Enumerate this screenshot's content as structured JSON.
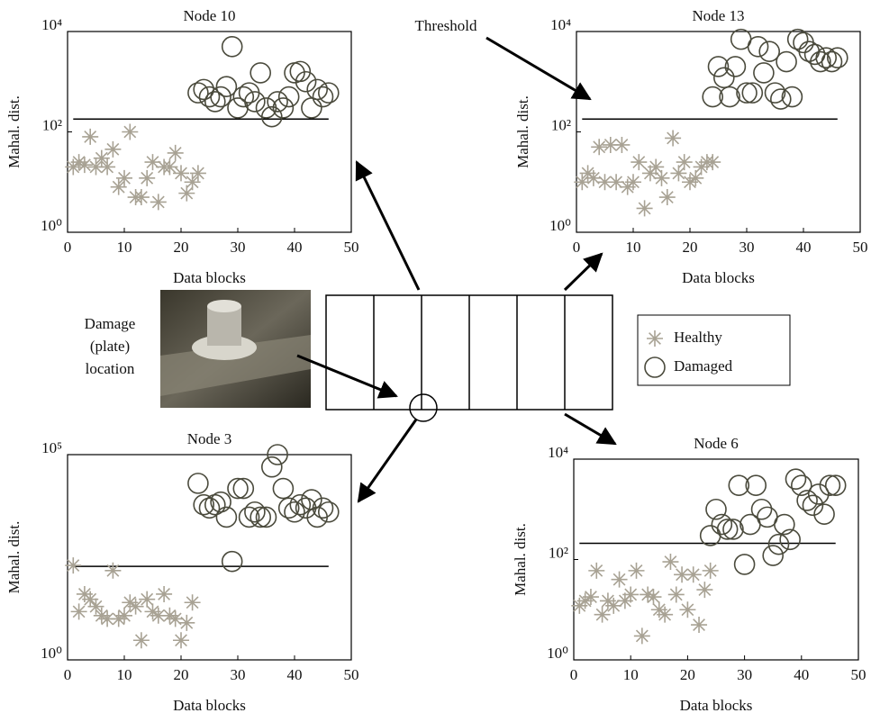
{
  "annotations": {
    "threshold": "Threshold",
    "damage": [
      "Damage",
      "(plate)",
      "location"
    ]
  },
  "chart_data": [
    {
      "type": "scatter",
      "title": "Node 10",
      "xlabel": "Data blocks",
      "ylabel": "Mahal. dist.",
      "log_y": true,
      "threshold": 180,
      "xlim": [
        0,
        50
      ],
      "xticks": [
        0,
        10,
        20,
        30,
        40,
        50
      ],
      "ylim": [
        1,
        10000
      ],
      "yticks": [
        {
          "value": 1,
          "label": "10⁰"
        },
        {
          "value": 100,
          "label": "10²"
        },
        {
          "value": 10000,
          "label": "10⁴"
        }
      ],
      "series": [
        {
          "name": "Healthy",
          "color": "#a8a294",
          "marker": "star",
          "x": [
            1,
            2,
            3,
            4,
            5,
            6,
            7,
            8,
            9,
            10,
            11,
            12,
            13,
            14,
            15,
            16,
            17,
            18,
            19,
            20,
            21,
            22,
            23
          ],
          "values": [
            20,
            25,
            22,
            80,
            20,
            30,
            20,
            45,
            8,
            12,
            100,
            5,
            5,
            12,
            25,
            4,
            20,
            20,
            38,
            15,
            6,
            10,
            15
          ]
        },
        {
          "name": "Damaged",
          "color": "#4a4a3c",
          "marker": "circle",
          "x": [
            23,
            24,
            25,
            26,
            27,
            28,
            29,
            30,
            31,
            32,
            33,
            34,
            35,
            36,
            37,
            38,
            39,
            40,
            41,
            42,
            43,
            44,
            45,
            46
          ],
          "values": [
            600,
            700,
            500,
            400,
            500,
            800,
            5000,
            300,
            500,
            600,
            400,
            1500,
            300,
            200,
            400,
            300,
            500,
            1500,
            1600,
            1000,
            300,
            700,
            500,
            600
          ]
        }
      ]
    },
    {
      "type": "scatter",
      "title": "Node 13",
      "xlabel": "Data blocks",
      "ylabel": "Mahal. dist.",
      "log_y": true,
      "threshold": 180,
      "xlim": [
        0,
        50
      ],
      "xticks": [
        0,
        10,
        20,
        30,
        40,
        50
      ],
      "ylim": [
        1,
        10000
      ],
      "yticks": [
        {
          "value": 1,
          "label": "10⁰"
        },
        {
          "value": 100,
          "label": "10²"
        },
        {
          "value": 10000,
          "label": "10⁴"
        }
      ],
      "series": [
        {
          "name": "Healthy",
          "color": "#a8a294",
          "marker": "star",
          "x": [
            1,
            2,
            3,
            4,
            5,
            6,
            7,
            8,
            9,
            10,
            11,
            12,
            13,
            14,
            15,
            16,
            17,
            18,
            19,
            20,
            21,
            22,
            23,
            24
          ],
          "values": [
            10,
            15,
            12,
            50,
            10,
            55,
            10,
            55,
            8,
            10,
            25,
            3,
            15,
            20,
            12,
            5,
            75,
            15,
            25,
            10,
            12,
            20,
            25,
            25
          ]
        },
        {
          "name": "Damaged",
          "color": "#4a4a3c",
          "marker": "circle",
          "x": [
            24,
            25,
            26,
            27,
            28,
            29,
            30,
            31,
            32,
            33,
            34,
            35,
            36,
            37,
            38,
            39,
            40,
            41,
            42,
            43,
            44,
            45,
            46
          ],
          "values": [
            500,
            2000,
            1200,
            500,
            2000,
            7000,
            600,
            600,
            5000,
            1500,
            4000,
            600,
            450,
            2500,
            500,
            7000,
            6000,
            4000,
            3500,
            2500,
            3000,
            2500,
            3000
          ]
        }
      ]
    },
    {
      "type": "scatter",
      "title": "Node 3",
      "xlabel": "Data blocks",
      "ylabel": "Mahal. dist.",
      "log_y": true,
      "threshold": 190,
      "xlim": [
        0,
        50
      ],
      "xticks": [
        0,
        10,
        20,
        30,
        40,
        50
      ],
      "ylim": [
        1,
        100000
      ],
      "yticks": [
        {
          "value": 1,
          "label": "10⁰"
        },
        {
          "value": 100000,
          "label": "10⁵"
        }
      ],
      "series": [
        {
          "name": "Healthy",
          "color": "#a8a294",
          "marker": "star",
          "x": [
            1,
            2,
            3,
            4,
            5,
            6,
            7,
            8,
            9,
            10,
            11,
            12,
            13,
            14,
            15,
            16,
            17,
            18,
            19,
            20,
            21,
            22
          ],
          "values": [
            200,
            15,
            40,
            30,
            20,
            12,
            10,
            150,
            10,
            12,
            25,
            20,
            3,
            30,
            15,
            12,
            40,
            12,
            10,
            3,
            8,
            25
          ]
        },
        {
          "name": "Damaged",
          "color": "#4a4a3c",
          "marker": "circle",
          "x": [
            23,
            24,
            25,
            26,
            27,
            28,
            29,
            30,
            31,
            32,
            33,
            34,
            35,
            36,
            37,
            38,
            39,
            40,
            41,
            42,
            43,
            44,
            45,
            46
          ],
          "values": [
            20000,
            6000,
            5000,
            6000,
            7000,
            3000,
            250,
            15000,
            15000,
            3000,
            4000,
            3000,
            3000,
            50000,
            100000,
            15000,
            5000,
            4000,
            6000,
            5000,
            8000,
            3000,
            5000,
            4000
          ]
        }
      ]
    },
    {
      "type": "scatter",
      "title": "Node 6",
      "xlabel": "Data blocks",
      "ylabel": "Mahal. dist.",
      "log_y": true,
      "threshold": 210,
      "xlim": [
        0,
        50
      ],
      "xticks": [
        0,
        10,
        20,
        30,
        40,
        50
      ],
      "ylim": [
        1,
        10000
      ],
      "yticks": [
        {
          "value": 1,
          "label": "10⁰"
        },
        {
          "value": 100,
          "label": "10²"
        },
        {
          "value": 10000,
          "label": "10⁴"
        }
      ],
      "series": [
        {
          "name": "Healthy",
          "color": "#a8a294",
          "marker": "star",
          "x": [
            1,
            2,
            3,
            4,
            5,
            6,
            7,
            8,
            9,
            10,
            11,
            12,
            13,
            14,
            15,
            16,
            17,
            18,
            19,
            20,
            21,
            22,
            23,
            24
          ],
          "values": [
            12,
            15,
            18,
            60,
            8,
            15,
            12,
            40,
            15,
            20,
            60,
            3,
            20,
            18,
            10,
            8,
            90,
            20,
            50,
            10,
            50,
            5,
            25,
            60
          ]
        },
        {
          "name": "Damaged",
          "color": "#4a4a3c",
          "marker": "circle",
          "x": [
            24,
            25,
            26,
            27,
            28,
            29,
            30,
            31,
            32,
            33,
            34,
            35,
            36,
            37,
            38,
            39,
            40,
            41,
            42,
            43,
            44,
            45,
            46
          ],
          "values": [
            300,
            1000,
            500,
            400,
            400,
            3000,
            80,
            500,
            3000,
            1000,
            700,
            120,
            200,
            500,
            250,
            4000,
            3000,
            1500,
            1200,
            2000,
            800,
            3000,
            3000
          ]
        }
      ]
    }
  ]
}
